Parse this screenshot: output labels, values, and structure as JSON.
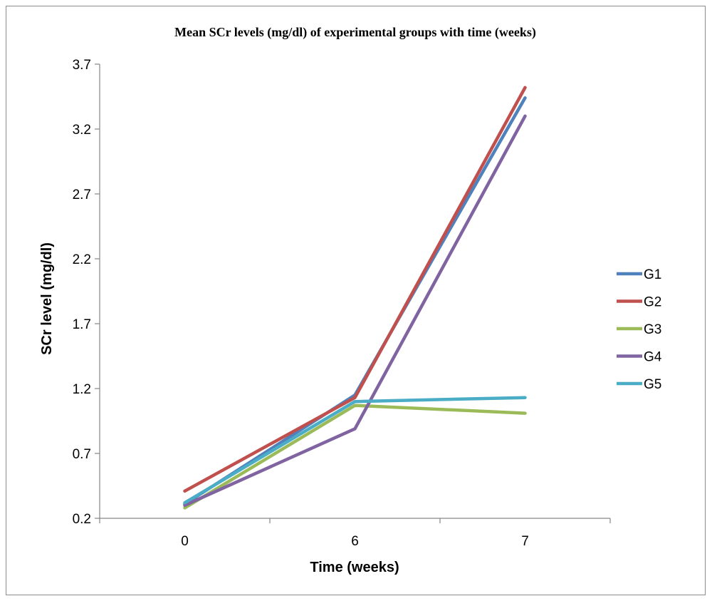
{
  "chart_data": {
    "type": "line",
    "title": "Mean SCr levels (mg/dl) of experimental groups with time (weeks)",
    "xlabel": "Time (weeks)",
    "ylabel": "SCr level (mg/dl)",
    "categories": [
      "0",
      "6",
      "7"
    ],
    "ylim": [
      0.2,
      3.7
    ],
    "yticks": [
      "0.2",
      "0.7",
      "1.2",
      "1.7",
      "2.2",
      "2.7",
      "3.2",
      "3.7"
    ],
    "grid": false,
    "legend_position": "right",
    "series": [
      {
        "name": "G1",
        "color": "#4f81bd",
        "values": [
          0.31,
          1.15,
          3.44
        ]
      },
      {
        "name": "G2",
        "color": "#c0504d",
        "values": [
          0.41,
          1.13,
          3.52
        ]
      },
      {
        "name": "G3",
        "color": "#9bbb59",
        "values": [
          0.28,
          1.07,
          1.01
        ]
      },
      {
        "name": "G4",
        "color": "#8064a2",
        "values": [
          0.3,
          0.89,
          3.3
        ]
      },
      {
        "name": "G5",
        "color": "#4bacc6",
        "values": [
          0.32,
          1.1,
          1.13
        ]
      }
    ]
  }
}
